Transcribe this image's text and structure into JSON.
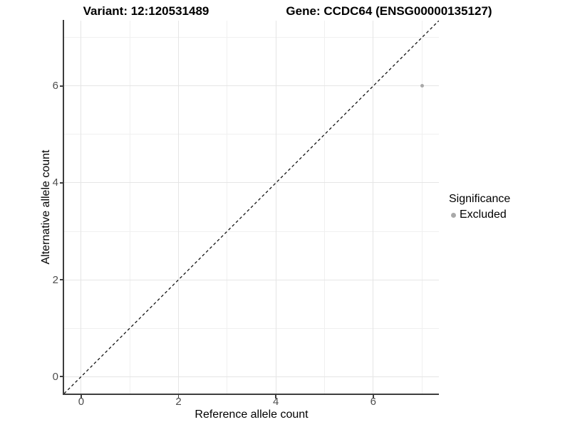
{
  "header": {
    "variant_title": "Variant: 12:120531489",
    "gene_title": "Gene: CCDC64 (ENSG00000135127)"
  },
  "legend": {
    "title": "Significance",
    "items": [
      {
        "label": "Excluded",
        "color": "#a9a9a9"
      }
    ]
  },
  "chart_data": {
    "type": "scatter",
    "title_left": "Variant: 12:120531489",
    "title_right": "Gene: CCDC64 (ENSG00000135127)",
    "xlabel": "Reference allele count",
    "ylabel": "Alternative allele count",
    "xlim": [
      -0.35,
      7.35
    ],
    "ylim": [
      -0.35,
      7.35
    ],
    "xticks": [
      0,
      2,
      4,
      6
    ],
    "yticks": [
      0,
      2,
      4,
      6
    ],
    "x_minor_gridlines": [
      1,
      3,
      5,
      7
    ],
    "y_minor_gridlines": [
      1,
      3,
      5,
      7
    ],
    "grid": "on",
    "legend_position": "right",
    "identity_line": {
      "style": "dashed",
      "color": "#141414",
      "equation": "y = x",
      "from": [
        -0.35,
        -0.35
      ],
      "to": [
        7.35,
        7.35
      ]
    },
    "series": [
      {
        "name": "Excluded",
        "color": "#a9a9a9",
        "points": [
          {
            "x": 7,
            "y": 6
          }
        ]
      }
    ]
  },
  "colors": {
    "background": "#ffffff",
    "axis_line": "#3d3d3d",
    "major_grid": "#e5e5e5",
    "minor_grid": "#f0f0f0",
    "tick_label": "#4d4d4d",
    "point": "#a9a9a9"
  }
}
